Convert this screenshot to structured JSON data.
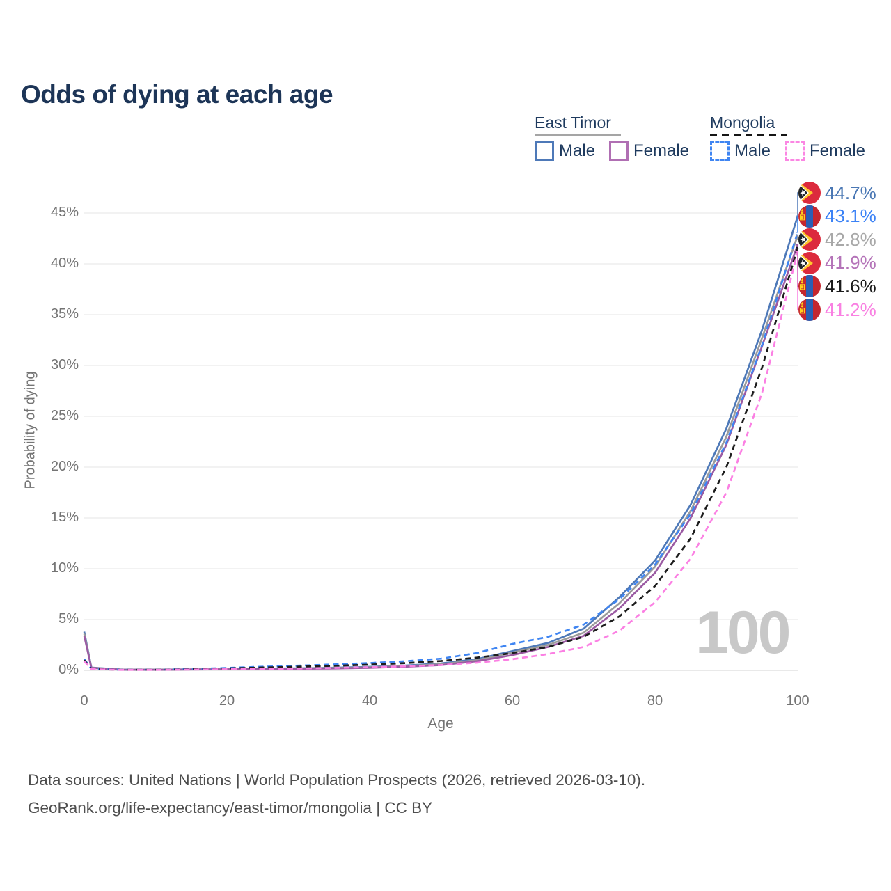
{
  "title": "Odds of dying at each age",
  "legend": {
    "groups": [
      {
        "label": "East Timor",
        "style": "solid",
        "items": [
          {
            "label": "Male"
          },
          {
            "label": "Female"
          }
        ]
      },
      {
        "label": "Mongolia",
        "style": "dashed",
        "items": [
          {
            "label": "Male"
          },
          {
            "label": "Female"
          }
        ]
      }
    ]
  },
  "watermark": "100",
  "footer": {
    "line1": "Data sources: United Nations | World Population Prospects (2026, retrieved 2026-03-10).",
    "line2": "GeoRank.org/life-expectancy/east-timor/mongolia | CC BY"
  },
  "colors": {
    "title_text": "#1d3557",
    "legend_text": "#1e3a5e",
    "axis_text": "#747474",
    "gridline": "#ededed",
    "baseline": "#e2e2e2",
    "watermark": "#c8c8c8",
    "footer_text": "#4e4e4e",
    "east_timor_group_rule": "#a5a5a5",
    "mongolia_group_rule": "#161616"
  },
  "chart_data": {
    "type": "line",
    "title": "Odds of dying at each age",
    "xlabel": "Age",
    "ylabel": "Probability of dying",
    "xlim": [
      0,
      100
    ],
    "ylim_pct": [
      0,
      47
    ],
    "grid": "horizontal",
    "legend_position": "top-right",
    "x_ticks": [
      {
        "label": "0",
        "value": 0
      },
      {
        "label": "20",
        "value": 20
      },
      {
        "label": "40",
        "value": 40
      },
      {
        "label": "60",
        "value": 60
      },
      {
        "label": "80",
        "value": 80
      },
      {
        "label": "100",
        "value": 100
      }
    ],
    "y_ticks": [
      {
        "label": "0%",
        "value": 0
      },
      {
        "label": "5%",
        "value": 5
      },
      {
        "label": "10%",
        "value": 10
      },
      {
        "label": "15%",
        "value": 15
      },
      {
        "label": "20%",
        "value": 20
      },
      {
        "label": "25%",
        "value": 25
      },
      {
        "label": "30%",
        "value": 30
      },
      {
        "label": "35%",
        "value": 35
      },
      {
        "label": "40%",
        "value": 40
      },
      {
        "label": "45%",
        "value": 45
      }
    ],
    "ages": [
      0,
      1,
      5,
      10,
      15,
      20,
      25,
      30,
      35,
      40,
      45,
      50,
      55,
      60,
      65,
      70,
      75,
      80,
      85,
      90,
      95,
      100
    ],
    "series": [
      {
        "id": "east-timor-male",
        "name": "East Timor Male",
        "country": "east-timor",
        "color": "#4e79b8",
        "label_color": "#4a77b4",
        "dash": "solid",
        "end_label": "44.7%",
        "values": [
          3.8,
          0.28,
          0.09,
          0.07,
          0.1,
          0.14,
          0.17,
          0.2,
          0.26,
          0.34,
          0.47,
          0.68,
          1.1,
          1.9,
          2.7,
          4.1,
          7.2,
          10.8,
          16.3,
          23.8,
          33.5,
          44.7
        ]
      },
      {
        "id": "mongolia-male",
        "name": "Mongolia Male",
        "country": "mongolia",
        "color": "#3f85f2",
        "label_color": "#3b82f6",
        "dash": "dashed",
        "end_label": "43.1%",
        "values": [
          1.1,
          0.16,
          0.07,
          0.06,
          0.13,
          0.24,
          0.36,
          0.46,
          0.58,
          0.72,
          0.9,
          1.15,
          1.7,
          2.6,
          3.3,
          4.5,
          7.0,
          10.4,
          15.4,
          22.4,
          32.0,
          43.1
        ]
      },
      {
        "id": "east-timor",
        "name": "East Timor (both sexes)",
        "country": "east-timor",
        "color": "#9b9b9b",
        "label_color": "#a8a8a8",
        "dash": "solid",
        "end_label": "42.8%",
        "values": [
          3.6,
          0.26,
          0.08,
          0.06,
          0.09,
          0.12,
          0.15,
          0.18,
          0.23,
          0.3,
          0.42,
          0.6,
          1.0,
          1.75,
          2.5,
          3.7,
          6.6,
          10.2,
          15.7,
          23.0,
          32.7,
          42.8
        ]
      },
      {
        "id": "east-timor-female",
        "name": "East Timor Female",
        "country": "east-timor",
        "color": "#9b5ba3",
        "label_color": "#b473b8",
        "dash": "solid",
        "end_label": "41.9%",
        "values": [
          3.4,
          0.24,
          0.07,
          0.06,
          0.08,
          0.1,
          0.12,
          0.15,
          0.19,
          0.25,
          0.36,
          0.52,
          0.9,
          1.5,
          2.3,
          3.4,
          6.1,
          9.6,
          15.0,
          22.2,
          31.9,
          41.9
        ]
      },
      {
        "id": "mongolia",
        "name": "Mongolia (both sexes)",
        "country": "mongolia",
        "color": "#1c1c1c",
        "label_color": "#1a1a1a",
        "dash": "dashed",
        "end_label": "41.6%",
        "values": [
          1.0,
          0.15,
          0.06,
          0.06,
          0.11,
          0.19,
          0.28,
          0.36,
          0.45,
          0.56,
          0.71,
          0.92,
          1.25,
          1.7,
          2.3,
          3.3,
          5.3,
          8.3,
          13.0,
          20.0,
          29.8,
          41.6
        ]
      },
      {
        "id": "mongolia-female",
        "name": "Mongolia Female",
        "country": "mongolia",
        "color": "#fb80e3",
        "label_color": "#f980e2",
        "dash": "dashed",
        "end_label": "41.2%",
        "values": [
          0.9,
          0.13,
          0.05,
          0.05,
          0.08,
          0.11,
          0.14,
          0.18,
          0.24,
          0.31,
          0.4,
          0.52,
          0.75,
          1.1,
          1.6,
          2.3,
          3.9,
          6.7,
          11.0,
          17.5,
          27.3,
          41.2
        ]
      }
    ]
  }
}
